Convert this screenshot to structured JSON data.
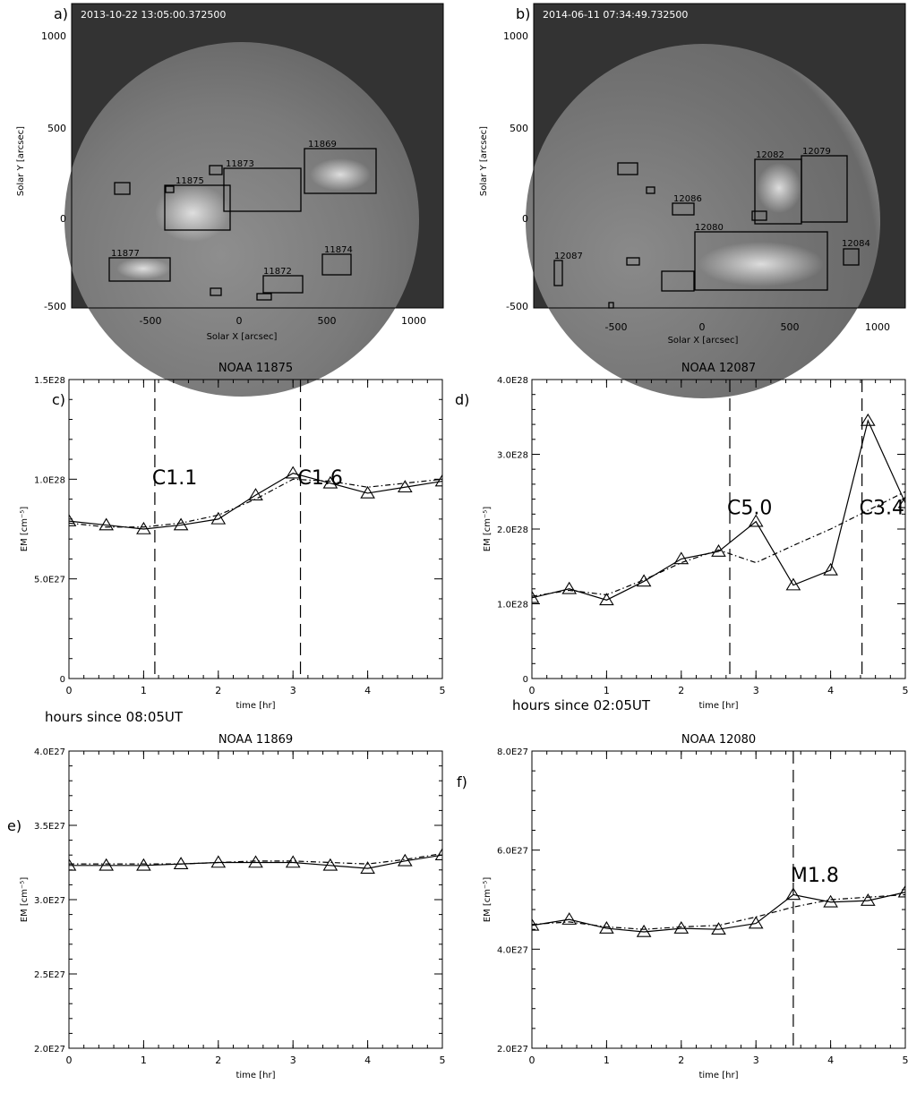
{
  "images": [
    {
      "panel": "a)",
      "timestamp": "2013-10-22 13:05:00.372500",
      "xlabel": "Solar X [arcsec]",
      "ylabel": "Solar Y [arcsec]",
      "xticks": [
        "-500",
        "0",
        "500",
        "1000"
      ],
      "yticks": [
        "-500",
        "0",
        "500",
        "1000"
      ],
      "regions": [
        {
          "label": "11869"
        },
        {
          "label": "11873"
        },
        {
          "label": "11875"
        },
        {
          "label": "11877"
        },
        {
          "label": "11874"
        },
        {
          "label": "11872"
        }
      ]
    },
    {
      "panel": "b)",
      "timestamp": "2014-06-11 07:34:49.732500",
      "xlabel": "Solar X [arcsec]",
      "ylabel": "Solar Y [arcsec]",
      "xticks": [
        "-500",
        "0",
        "500",
        "1000"
      ],
      "yticks": [
        "-500",
        "0",
        "500",
        "1000"
      ],
      "regions": [
        {
          "label": "12082"
        },
        {
          "label": "12079"
        },
        {
          "label": "12086"
        },
        {
          "label": "12080"
        },
        {
          "label": "12084"
        },
        {
          "label": "12087"
        }
      ]
    }
  ],
  "chart_data": [
    {
      "type": "line",
      "panel": "c)",
      "title": "NOAA 11875",
      "xlabel": "time [hr]",
      "ylabel": "EM [cm⁻⁵]",
      "xlim": [
        0,
        5
      ],
      "ylim": [
        0,
        1.5e+28
      ],
      "xticks": [
        "0",
        "1",
        "2",
        "3",
        "4",
        "5"
      ],
      "yticks": [
        {
          "v": 0,
          "label": "0"
        },
        {
          "v": 5e+27,
          "label": "5.0E27"
        },
        {
          "v": 1e+28,
          "label": "1.0E28"
        },
        {
          "v": 1.5e+28,
          "label": "1.5E28"
        }
      ],
      "x": [
        0,
        0.5,
        1,
        1.5,
        2,
        2.5,
        3,
        3.5,
        4,
        4.5,
        5
      ],
      "series": [
        {
          "style": "solid-triangles",
          "values": [
            7.9e+27,
            7.7e+27,
            7.5e+27,
            7.7e+27,
            8e+27,
            9.2e+27,
            1.03e+28,
            9.8e+27,
            9.3e+27,
            9.6e+27,
            9.9e+27
          ]
        },
        {
          "style": "dash-dot",
          "values": [
            7.8e+27,
            7.6e+27,
            7.6e+27,
            7.8e+27,
            8.2e+27,
            9e+27,
            1e+28,
            9.9e+27,
            9.6e+27,
            9.8e+27,
            1e+28
          ]
        }
      ],
      "flares": [
        {
          "x": 1.15,
          "label": "C1.1"
        },
        {
          "x": 3.1,
          "label": "C1.6"
        }
      ],
      "note": "hours since 08:05UT"
    },
    {
      "type": "line",
      "panel": "d)",
      "title": "NOAA 12087",
      "xlabel": "time [hr]",
      "ylabel": "EM [cm⁻⁵]",
      "xlim": [
        0,
        5
      ],
      "ylim": [
        0,
        4e+28
      ],
      "xticks": [
        "0",
        "1",
        "2",
        "3",
        "4",
        "5"
      ],
      "yticks": [
        {
          "v": 0,
          "label": "0"
        },
        {
          "v": 1e+28,
          "label": "1.0E28"
        },
        {
          "v": 2e+28,
          "label": "2.0E28"
        },
        {
          "v": 3e+28,
          "label": "3.0E28"
        },
        {
          "v": 4e+28,
          "label": "4.0E28"
        }
      ],
      "x": [
        0,
        0.5,
        1,
        1.5,
        2,
        2.5,
        3,
        3.5,
        4,
        4.5,
        5
      ],
      "series": [
        {
          "style": "solid-triangles",
          "values": [
            1.08e+28,
            1.2e+28,
            1.05e+28,
            1.3e+28,
            1.6e+28,
            1.7e+28,
            2.1e+28,
            1.25e+28,
            1.45e+28,
            3.45e+28,
            2.35e+28
          ]
        },
        {
          "style": "dash-dot",
          "values": [
            1.1e+28,
            1.18e+28,
            1.12e+28,
            1.32e+28,
            1.55e+28,
            1.72e+28,
            1.55e+28,
            1.78e+28,
            2e+28,
            2.25e+28,
            2.5e+28
          ]
        }
      ],
      "flares": [
        {
          "x": 2.65,
          "label": "C5.0"
        },
        {
          "x": 4.42,
          "label": "C3.4"
        }
      ],
      "note": "hours since 02:05UT"
    },
    {
      "type": "line",
      "panel": "e)",
      "title": "NOAA 11869",
      "xlabel": "time [hr]",
      "ylabel": "EM [cm⁻⁵]",
      "xlim": [
        0,
        5
      ],
      "ylim": [
        2e+27,
        4e+27
      ],
      "xticks": [
        "0",
        "1",
        "2",
        "3",
        "4",
        "5"
      ],
      "yticks": [
        {
          "v": 2e+27,
          "label": "2.0E27"
        },
        {
          "v": 2.5e+27,
          "label": "2.5E27"
        },
        {
          "v": 3e+27,
          "label": "3.0E27"
        },
        {
          "v": 3.5e+27,
          "label": "3.5E27"
        },
        {
          "v": 4e+27,
          "label": "4.0E27"
        }
      ],
      "x": [
        0,
        0.5,
        1,
        1.5,
        2,
        2.5,
        3,
        3.5,
        4,
        4.5,
        5
      ],
      "series": [
        {
          "style": "solid-triangles",
          "values": [
            3.23e+27,
            3.23e+27,
            3.23e+27,
            3.24e+27,
            3.25e+27,
            3.25e+27,
            3.25e+27,
            3.23e+27,
            3.21e+27,
            3.26e+27,
            3.3e+27
          ]
        },
        {
          "style": "dash-dot",
          "values": [
            3.24e+27,
            3.24e+27,
            3.24e+27,
            3.24e+27,
            3.25e+27,
            3.26e+27,
            3.26e+27,
            3.25e+27,
            3.24e+27,
            3.27e+27,
            3.31e+27
          ]
        }
      ],
      "flares": [],
      "note": ""
    },
    {
      "type": "line",
      "panel": "f)",
      "title": "NOAA 12080",
      "xlabel": "time [hr]",
      "ylabel": "EM [cm⁻⁵]",
      "xlim": [
        0,
        5
      ],
      "ylim": [
        2e+27,
        8e+27
      ],
      "xticks": [
        "0",
        "1",
        "2",
        "3",
        "4",
        "5"
      ],
      "yticks": [
        {
          "v": 2e+27,
          "label": "2.0E27"
        },
        {
          "v": 4e+27,
          "label": "4.0E27"
        },
        {
          "v": 6e+27,
          "label": "6.0E27"
        },
        {
          "v": 8e+27,
          "label": "8.0E27"
        }
      ],
      "x": [
        0,
        0.5,
        1,
        1.5,
        2,
        2.5,
        3,
        3.5,
        4,
        4.5,
        5
      ],
      "series": [
        {
          "style": "solid-triangles",
          "values": [
            4.48e+27,
            4.6e+27,
            4.42e+27,
            4.35e+27,
            4.42e+27,
            4.4e+27,
            4.52e+27,
            5.1e+27,
            4.95e+27,
            4.98e+27,
            5.15e+27
          ]
        },
        {
          "style": "dash-dot",
          "values": [
            4.5e+27,
            4.55e+27,
            4.45e+27,
            4.4e+27,
            4.45e+27,
            4.48e+27,
            4.65e+27,
            4.85e+27,
            5e+27,
            5.05e+27,
            5.1e+27
          ]
        }
      ],
      "flares": [
        {
          "x": 3.5,
          "label": "M1.8"
        }
      ],
      "note": ""
    }
  ]
}
